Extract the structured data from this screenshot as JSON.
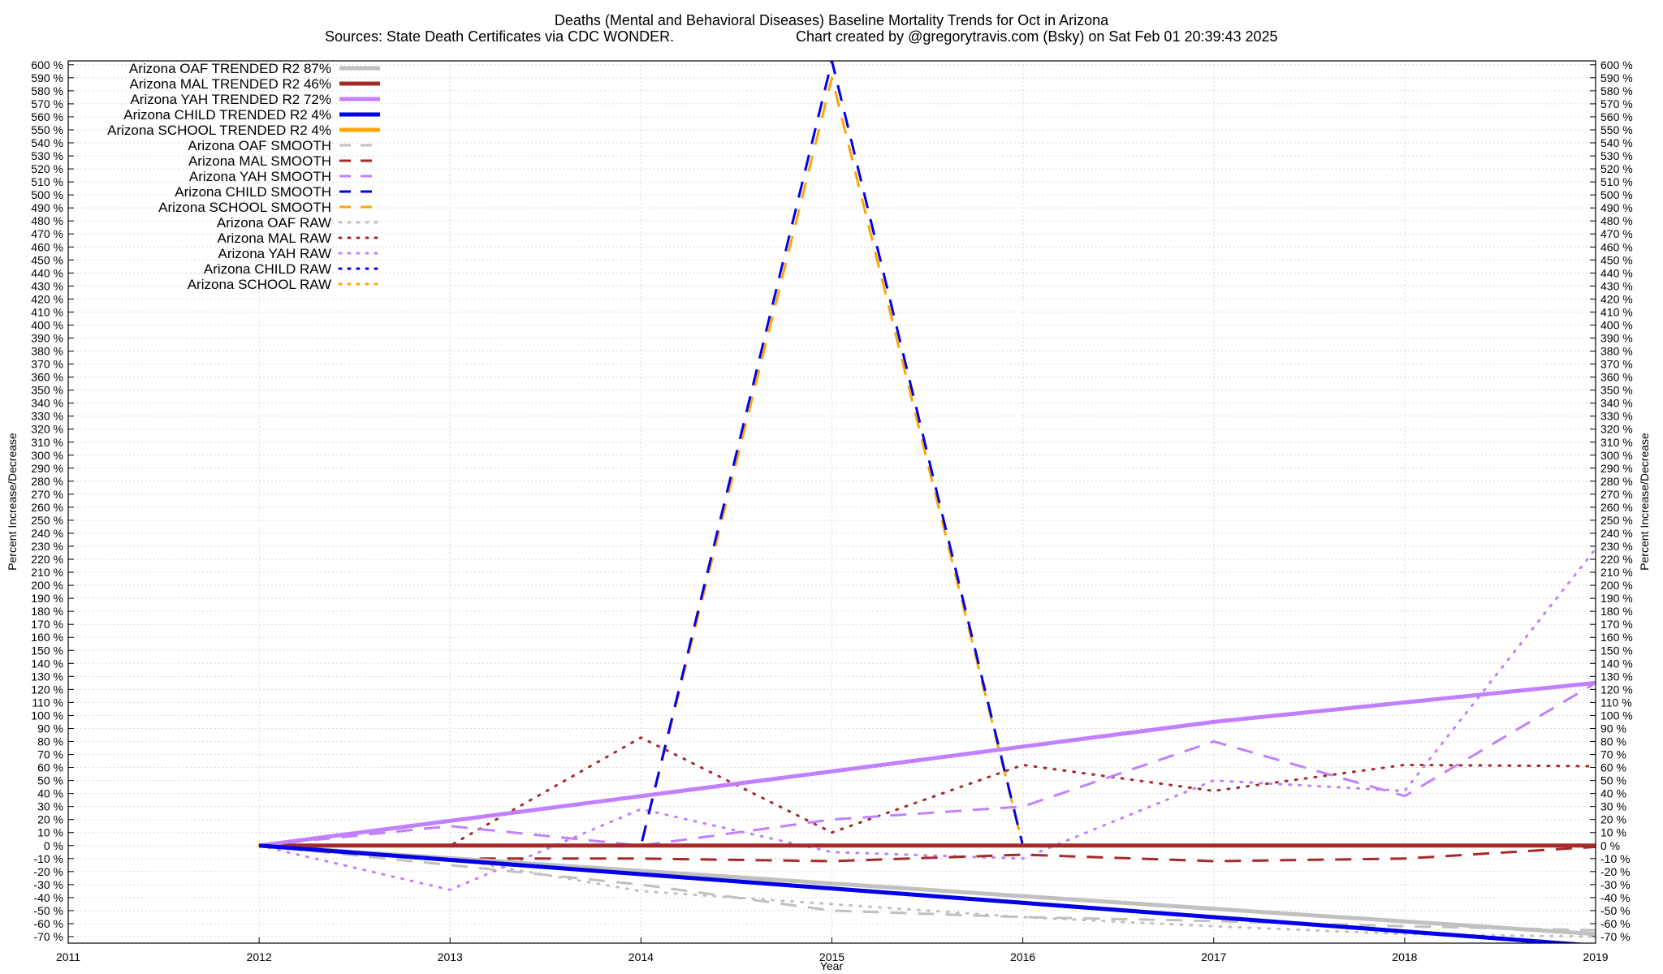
{
  "chart_data": {
    "type": "line",
    "title": "Deaths (Mental and Behavioral Diseases)  Baseline Mortality Trends for Oct in Arizona",
    "subtitle_left": "Sources: State Death Certificates via CDC WONDER.",
    "subtitle_right": "Chart created by @gregorytravis.com (Bsky) on Sat Feb 01 20:39:43 2025",
    "xlabel": "Year",
    "ylabel": "Percent Increase/Decrease",
    "ylabel_right": "Percent Increase/Decrease",
    "xlim": [
      2011,
      2019
    ],
    "ylim": [
      -75,
      603
    ],
    "x_ticks": [
      "2011",
      "2012",
      "2013",
      "2014",
      "2015",
      "2016",
      "2017",
      "2018",
      "2019"
    ],
    "y_tick_suffix": " %",
    "y_tick_start": -70,
    "y_tick_end": 600,
    "y_tick_step": 10,
    "grid": true,
    "legend_position": "top-left",
    "series": [
      {
        "name": "Arizona OAF TRENDED R2  87%",
        "style": "trend",
        "color": "#c0c0c0",
        "x": [
          2012,
          2019
        ],
        "y": [
          0,
          -68
        ]
      },
      {
        "name": "Arizona MAL TRENDED R2  46%",
        "style": "trend",
        "color": "#a52a2a",
        "x": [
          2012,
          2019
        ],
        "y": [
          0,
          0
        ]
      },
      {
        "name": "Arizona YAH TRENDED R2  72%",
        "style": "trend",
        "color": "#c080ff",
        "x": [
          2012,
          2017,
          2019
        ],
        "y": [
          0,
          95,
          125
        ]
      },
      {
        "name": "Arizona CHILD TRENDED R2   4%",
        "style": "trend",
        "color": "#0000ee",
        "x": [
          2012,
          2019
        ],
        "y": [
          0,
          -77
        ]
      },
      {
        "name": "Arizona SCHOOL TRENDED R2   4%",
        "style": "trend",
        "color": "#ffa500",
        "x": [
          2012,
          2019
        ],
        "y": [
          0,
          -77
        ]
      },
      {
        "name": "Arizona OAF SMOOTH",
        "style": "smooth",
        "color": "#c0c0c0",
        "x": [
          2012,
          2013,
          2014,
          2015,
          2016,
          2017,
          2018,
          2019
        ],
        "y": [
          0,
          -15,
          -30,
          -50,
          -55,
          -58,
          -62,
          -65
        ]
      },
      {
        "name": "Arizona MAL SMOOTH",
        "style": "smooth",
        "color": "#a52a2a",
        "x": [
          2012,
          2013,
          2014,
          2015,
          2016,
          2017,
          2018,
          2019
        ],
        "y": [
          0,
          -10,
          -10,
          -12,
          -7,
          -12,
          -10,
          -1
        ]
      },
      {
        "name": "Arizona YAH SMOOTH",
        "style": "smooth",
        "color": "#c080ff",
        "x": [
          2012,
          2013,
          2014,
          2015,
          2016,
          2017,
          2018,
          2019
        ],
        "y": [
          0,
          15,
          0,
          20,
          30,
          80,
          38,
          125
        ]
      },
      {
        "name": "Arizona CHILD SMOOTH",
        "style": "smooth",
        "color": "#0000ee",
        "x": [
          2012,
          2013,
          2014,
          2015,
          2016,
          2017,
          2018,
          2019
        ],
        "y": [
          0,
          0,
          0,
          603,
          0,
          0,
          0,
          0
        ]
      },
      {
        "name": "Arizona SCHOOL SMOOTH",
        "style": "smooth",
        "color": "#ffa500",
        "x": [
          2012,
          2013,
          2014,
          2015,
          2016,
          2017,
          2018,
          2019
        ],
        "y": [
          0,
          0,
          0,
          590,
          0,
          0,
          0,
          0
        ]
      },
      {
        "name": "Arizona OAF RAW",
        "style": "raw",
        "color": "#c0c0c0",
        "x": [
          2012,
          2013,
          2014,
          2015,
          2016,
          2017,
          2018,
          2019
        ],
        "y": [
          0,
          -10,
          -35,
          -45,
          -55,
          -62,
          -68,
          -70
        ]
      },
      {
        "name": "Arizona MAL RAW",
        "style": "raw",
        "color": "#a52a2a",
        "x": [
          2012,
          2013,
          2014,
          2015,
          2016,
          2017,
          2018,
          2019
        ],
        "y": [
          0,
          0,
          83,
          10,
          62,
          42,
          62,
          61
        ]
      },
      {
        "name": "Arizona YAH RAW",
        "style": "raw",
        "color": "#c080ff",
        "x": [
          2012,
          2013,
          2014,
          2015,
          2016,
          2017,
          2018,
          2019
        ],
        "y": [
          0,
          -34,
          28,
          -5,
          -10,
          50,
          42,
          228
        ]
      },
      {
        "name": "Arizona CHILD RAW",
        "style": "raw",
        "color": "#0000ee",
        "x": [
          2012,
          2013,
          2014,
          2015,
          2016,
          2017,
          2018,
          2019
        ],
        "y": [
          0,
          0,
          0,
          0,
          0,
          0,
          0,
          0
        ]
      },
      {
        "name": "Arizona SCHOOL RAW",
        "style": "raw",
        "color": "#ffa500",
        "x": [
          2012,
          2013,
          2014,
          2015,
          2016,
          2017,
          2018,
          2019
        ],
        "y": [
          0,
          0,
          0,
          0,
          0,
          0,
          0,
          0
        ]
      }
    ]
  }
}
